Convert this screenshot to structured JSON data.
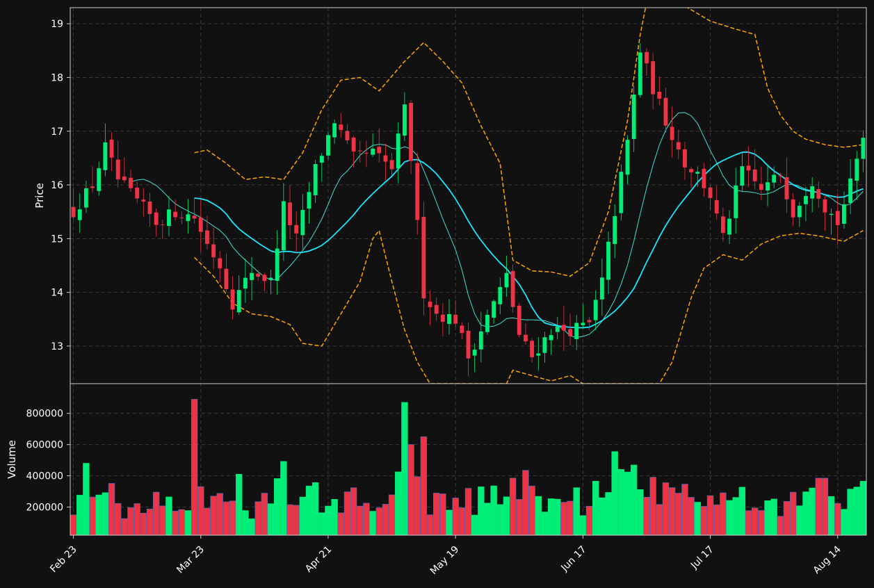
{
  "chart_data": [
    {
      "type": "candlestick",
      "panel": "price",
      "ylabel": "Price",
      "ylim": [
        12.3,
        19.3
      ],
      "y_ticks": [
        13,
        14,
        15,
        16,
        17,
        18,
        19
      ],
      "grid": true,
      "overlays": [
        "moving-average-short",
        "moving-average-long",
        "bollinger-upper",
        "bollinger-lower"
      ]
    },
    {
      "type": "bar",
      "panel": "volume",
      "ylabel": "Volume",
      "ylim": [
        20000,
        990000
      ],
      "y_ticks": [
        200000,
        400000,
        600000,
        800000
      ],
      "grid": true
    }
  ],
  "x_tick_labels": [
    "Feb 23",
    "Mar 23",
    "Apr 21",
    "May 19",
    "Jun 17",
    "Jul 17",
    "Aug 14"
  ],
  "x_tick_sessions": [
    0,
    20,
    40,
    60,
    80,
    100,
    120
  ],
  "sessions": {
    "count": 125,
    "first_label": "Feb 23"
  },
  "close_anchors": [
    [
      0,
      15.5
    ],
    [
      3,
      16.0
    ],
    [
      5,
      16.7
    ],
    [
      7,
      16.1
    ],
    [
      10,
      15.7
    ],
    [
      13,
      15.3
    ],
    [
      16,
      15.5
    ],
    [
      19,
      15.4
    ],
    [
      21,
      14.9
    ],
    [
      23,
      14.5
    ],
    [
      25,
      13.8
    ],
    [
      28,
      14.4
    ],
    [
      31,
      14.2
    ],
    [
      33,
      15.6
    ],
    [
      35,
      15.0
    ],
    [
      38,
      16.3
    ],
    [
      41,
      17.2
    ],
    [
      44,
      16.5
    ],
    [
      47,
      16.6
    ],
    [
      50,
      16.3
    ],
    [
      52,
      17.4
    ],
    [
      53,
      16.5
    ],
    [
      55,
      14.0
    ],
    [
      57,
      13.6
    ],
    [
      60,
      13.5
    ],
    [
      62,
      12.8
    ],
    [
      64,
      13.3
    ],
    [
      66,
      13.8
    ],
    [
      68,
      14.3
    ],
    [
      70,
      13.2
    ],
    [
      72,
      12.8
    ],
    [
      75,
      13.3
    ],
    [
      78,
      13.3
    ],
    [
      81,
      13.4
    ],
    [
      83,
      14.2
    ],
    [
      85,
      15.5
    ],
    [
      87,
      16.8
    ],
    [
      89,
      18.5
    ],
    [
      91,
      17.8
    ],
    [
      93,
      17.2
    ],
    [
      96,
      16.4
    ],
    [
      98,
      16.2
    ],
    [
      100,
      15.8
    ],
    [
      102,
      15.0
    ],
    [
      105,
      16.3
    ],
    [
      108,
      15.9
    ],
    [
      111,
      16.2
    ],
    [
      113,
      15.5
    ],
    [
      116,
      16.1
    ],
    [
      118,
      15.6
    ],
    [
      120,
      15.3
    ],
    [
      122,
      16.0
    ],
    [
      124,
      16.9
    ]
  ],
  "upper_band_points": [
    [
      19,
      16.6
    ],
    [
      21,
      16.65
    ],
    [
      24,
      16.4
    ],
    [
      27,
      16.1
    ],
    [
      30,
      16.15
    ],
    [
      33,
      16.1
    ],
    [
      36,
      16.6
    ],
    [
      39,
      17.4
    ],
    [
      42,
      17.95
    ],
    [
      45,
      18.0
    ],
    [
      48,
      17.75
    ],
    [
      52,
      18.3
    ],
    [
      55,
      18.65
    ],
    [
      58,
      18.3
    ],
    [
      61,
      17.9
    ],
    [
      64,
      17.1
    ],
    [
      67,
      16.4
    ],
    [
      69,
      14.6
    ],
    [
      72,
      14.4
    ],
    [
      75,
      14.38
    ],
    [
      78,
      14.3
    ],
    [
      81,
      14.55
    ],
    [
      84,
      15.5
    ],
    [
      87,
      17.2
    ],
    [
      89,
      18.8
    ],
    [
      90,
      19.4
    ],
    [
      95,
      19.4
    ],
    [
      100,
      19.05
    ],
    [
      104,
      18.9
    ],
    [
      107,
      18.8
    ],
    [
      109,
      17.8
    ],
    [
      111,
      17.3
    ],
    [
      113,
      17.0
    ],
    [
      115,
      16.85
    ],
    [
      118,
      16.75
    ],
    [
      121,
      16.7
    ],
    [
      124,
      16.75
    ]
  ],
  "lower_band_points": [
    [
      19,
      14.65
    ],
    [
      22,
      14.3
    ],
    [
      25,
      13.8
    ],
    [
      28,
      13.6
    ],
    [
      31,
      13.55
    ],
    [
      34,
      13.4
    ],
    [
      36,
      13.05
    ],
    [
      39,
      13.0
    ],
    [
      42,
      13.6
    ],
    [
      45,
      14.2
    ],
    [
      47,
      15.0
    ],
    [
      48,
      15.15
    ],
    [
      50,
      14.2
    ],
    [
      52,
      13.3
    ],
    [
      54,
      12.7
    ],
    [
      56,
      12.3
    ],
    [
      68,
      12.3
    ],
    [
      69,
      12.55
    ],
    [
      72,
      12.45
    ],
    [
      75,
      12.35
    ],
    [
      78,
      12.45
    ],
    [
      80,
      12.3
    ],
    [
      92,
      12.3
    ],
    [
      94,
      12.7
    ],
    [
      97,
      13.9
    ],
    [
      99,
      14.45
    ],
    [
      102,
      14.7
    ],
    [
      105,
      14.6
    ],
    [
      108,
      14.9
    ],
    [
      111,
      15.05
    ],
    [
      114,
      15.1
    ],
    [
      117,
      15.05
    ],
    [
      121,
      14.95
    ],
    [
      124,
      15.15
    ]
  ],
  "colors": {
    "background": "#111111",
    "panel_border": "#cccccc",
    "grid": "#3a3a3a",
    "up": "#00ee77",
    "down": "#ee3344",
    "volume_edge": "#5566aa",
    "ma_short": "#40e0d0",
    "ma_long": "#1ee5ff",
    "bollinger": "#ffa500",
    "text": "#ffffff"
  }
}
